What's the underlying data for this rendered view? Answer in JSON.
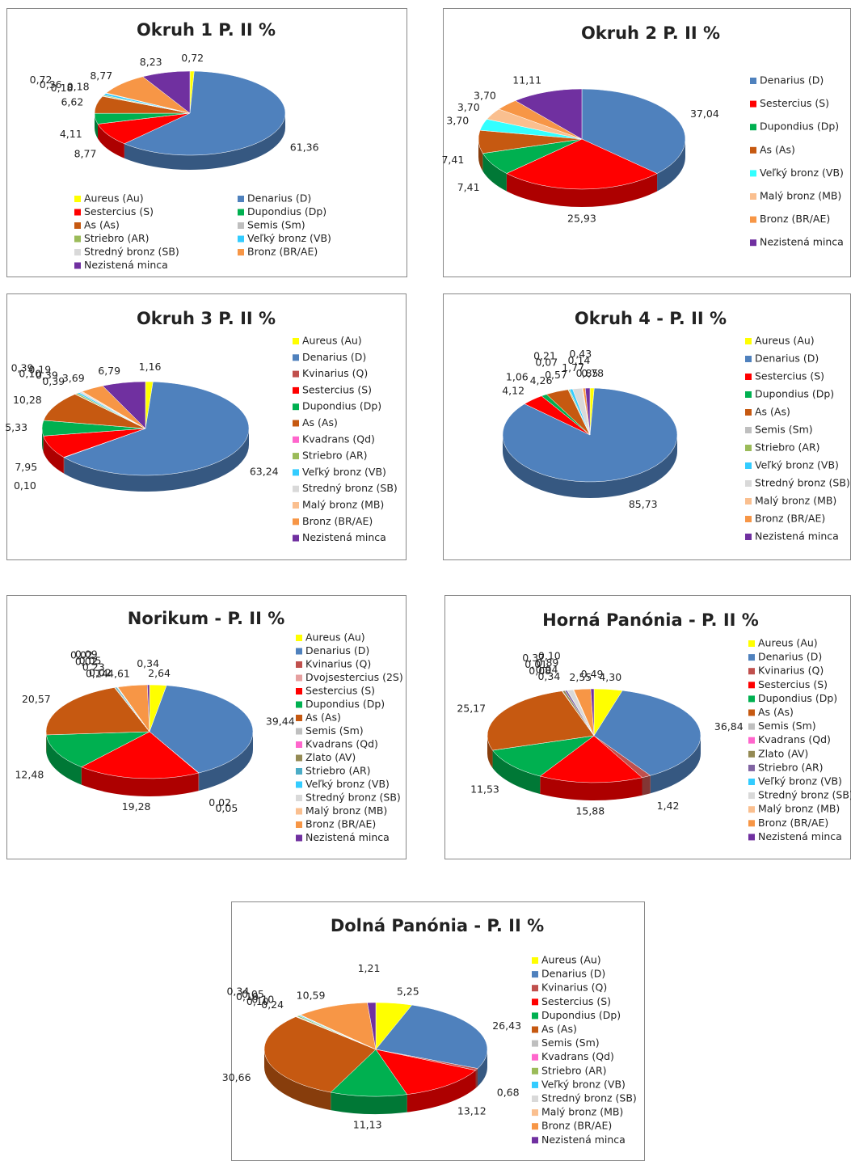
{
  "chart_data": [
    {
      "type": "pie",
      "title": "Okruh 1 P. II %",
      "legend": "bottom",
      "categories": [
        "Aureus (Au)",
        "Denarius (D)",
        "Sestercius (S)",
        "Dupondius (Dp)",
        "As (As)",
        "Semis (Sm)",
        "Striebro (AR)",
        "Veľký bronz (VB)",
        "Stredný bronz (SB)",
        "Bronz (BR/AE)",
        "Nezistená minca"
      ],
      "values": [
        0.72,
        61.36,
        8.77,
        4.11,
        6.62,
        0.18,
        0.36,
        0.72,
        0.18,
        8.77,
        8.23
      ],
      "value_labels": [
        "0,72",
        "61,36",
        "8,77",
        "4,11",
        "6,62",
        "0,18",
        "0,36",
        "0,72",
        "0,18",
        "8,77",
        "8,23"
      ],
      "colors": [
        "#ffff00",
        "#4f81bd",
        "#ff0000",
        "#00b050",
        "#c65911",
        "#bfbfbf",
        "#9bbb59",
        "#33ccff",
        "#d9d9d9",
        "#f79646",
        "#7030a0"
      ]
    },
    {
      "type": "pie",
      "title": "Okruh 2 P. II %",
      "legend": "right",
      "categories": [
        "Denarius (D)",
        "Sestercius (S)",
        "Dupondius (Dp)",
        "As (As)",
        "Veľký bronz (VB)",
        "Malý bronz (MB)",
        "Bronz (BR/AE)",
        "Nezistená minca"
      ],
      "values": [
        37.04,
        25.93,
        7.41,
        7.41,
        3.7,
        3.7,
        3.7,
        11.11
      ],
      "value_labels": [
        "37,04",
        "25,93",
        "7,41",
        "7,41",
        "3,70",
        "3,70",
        "3,70",
        "11,11"
      ],
      "colors": [
        "#4f81bd",
        "#ff0000",
        "#00b050",
        "#c65911",
        "#33ffff",
        "#fabf8f",
        "#f79646",
        "#7030a0"
      ]
    },
    {
      "type": "pie",
      "title": "Okruh 3 P. II %",
      "legend": "right",
      "categories": [
        "Aureus (Au)",
        "Denarius (D)",
        "Kvinarius (Q)",
        "Sestercius (S)",
        "Dupondius (Dp)",
        "As (As)",
        "Kvadrans (Qd)",
        "Striebro (AR)",
        "Veľký bronz (VB)",
        "Stredný bronz (SB)",
        "Malý bronz (MB)",
        "Bronz (BR/AE)",
        "Nezistená minca"
      ],
      "values": [
        1.16,
        63.24,
        0.1,
        7.95,
        5.33,
        10.28,
        0.1,
        0.39,
        0.39,
        0.39,
        0.19,
        3.69,
        6.79
      ],
      "value_labels": [
        "1,16",
        "63,24",
        "0,10",
        "7,95",
        "5,33",
        "10,28",
        "0,10",
        "0,39",
        "0,39",
        "0,39",
        "0,19",
        "3,69",
        "6,79"
      ],
      "colors": [
        "#ffff00",
        "#4f81bd",
        "#c0504d",
        "#ff0000",
        "#00b050",
        "#c65911",
        "#ff66cc",
        "#9bbb59",
        "#33ccff",
        "#d9d9d9",
        "#fabf8f",
        "#f79646",
        "#7030a0"
      ]
    },
    {
      "type": "pie",
      "title": "Okruh 4 - P. II %",
      "legend": "right",
      "categories": [
        "Aureus (Au)",
        "Denarius (D)",
        "Sestercius (S)",
        "Dupondius (Dp)",
        "As (As)",
        "Semis (Sm)",
        "Striebro (AR)",
        "Veľký bronz (VB)",
        "Stredný bronz (SB)",
        "Malý bronz (MB)",
        "Bronz (BR/AE)",
        "Nezistená minca"
      ],
      "values": [
        0.78,
        85.73,
        4.12,
        1.06,
        4.26,
        0.07,
        0.21,
        0.57,
        1.77,
        0.14,
        0.43,
        0.85
      ],
      "value_labels": [
        "0,78",
        "85,73",
        "4,12",
        "1,06",
        "4,26",
        "0,07",
        "0,21",
        "0,57",
        "1,77",
        "0,14",
        "0,43",
        "0,85"
      ],
      "colors": [
        "#ffff00",
        "#4f81bd",
        "#ff0000",
        "#00b050",
        "#c65911",
        "#bfbfbf",
        "#9bbb59",
        "#33ccff",
        "#d9d9d9",
        "#fabf8f",
        "#f79646",
        "#7030a0"
      ]
    },
    {
      "type": "pie",
      "title": "Norikum - P. II %",
      "legend": "right",
      "categories": [
        "Aureus (Au)",
        "Denarius (D)",
        "Kvinarius (Q)",
        "Dvojsestercius (2S)",
        "Sestercius (S)",
        "Dupondius (Dp)",
        "As (As)",
        "Semis (Sm)",
        "Kvadrans (Qd)",
        "Zlato (AV)",
        "Striebro (AR)",
        "Veľký bronz (VB)",
        "Stredný bronz (SB)",
        "Malý bronz (MB)",
        "Bronz (BR/AE)",
        "Nezistená minca"
      ],
      "values": [
        2.64,
        39.44,
        0.02,
        0.05,
        19.28,
        12.48,
        20.57,
        0.02,
        0.02,
        0.14,
        0.23,
        0.05,
        0.09,
        0.02,
        4.61,
        0.34
      ],
      "value_labels": [
        "2,64",
        "39,44",
        "0,02",
        "0,05",
        "19,28",
        "12,48",
        "20,57",
        "0,02",
        "0,02",
        "0,14",
        "0,23",
        "0,05",
        "0,09",
        "0,02",
        "4,61",
        "0,34"
      ],
      "colors": [
        "#ffff00",
        "#4f81bd",
        "#c0504d",
        "#e6a0a0",
        "#ff0000",
        "#00b050",
        "#c65911",
        "#bfbfbf",
        "#ff66cc",
        "#948a54",
        "#4bacc6",
        "#33ccff",
        "#d9d9d9",
        "#fabf8f",
        "#f79646",
        "#7030a0"
      ]
    },
    {
      "type": "pie",
      "title": "Horná Panónia - P. II %",
      "legend": "right",
      "categories": [
        "Aureus (Au)",
        "Denarius (D)",
        "Kvinarius (Q)",
        "Sestercius (S)",
        "Dupondius (Dp)",
        "As (As)",
        "Semis (Sm)",
        "Kvadrans (Qd)",
        "Zlato (AV)",
        "Striebro (AR)",
        "Veľký bronz (VB)",
        "Stredný bronz (SB)",
        "Malý bronz (MB)",
        "Bronz (BR/AE)",
        "Nezistená minca"
      ],
      "values": [
        4.3,
        36.84,
        1.42,
        15.88,
        11.53,
        25.17,
        0.08,
        0.01,
        0.37,
        0.34,
        0.04,
        0.89,
        0.1,
        2.55,
        0.49
      ],
      "value_labels": [
        "4,30",
        "36,84",
        "1,42",
        "15,88",
        "11,53",
        "25,17",
        "0,08",
        "0,01",
        "0,37",
        "0,34",
        "0,04",
        "0,89",
        "0,10",
        "2,55",
        "0,49"
      ],
      "colors": [
        "#ffff00",
        "#4f81bd",
        "#c0504d",
        "#ff0000",
        "#00b050",
        "#c65911",
        "#bfbfbf",
        "#ff66cc",
        "#948a54",
        "#8064a2",
        "#33ccff",
        "#d9d9d9",
        "#fabf8f",
        "#f79646",
        "#7030a0"
      ]
    },
    {
      "type": "pie",
      "title": "Dolná Panónia - P. II %",
      "legend": "right",
      "categories": [
        "Aureus (Au)",
        "Denarius (D)",
        "Kvinarius (Q)",
        "Sestercius (S)",
        "Dupondius (Dp)",
        "As (As)",
        "Semis (Sm)",
        "Kvadrans (Qd)",
        "Striebro (AR)",
        "Veľký bronz (VB)",
        "Stredný bronz (SB)",
        "Malý bronz (MB)",
        "Bronz (BR/AE)",
        "Nezistená minca"
      ],
      "values": [
        5.25,
        26.43,
        0.68,
        13.12,
        11.13,
        30.66,
        0.1,
        0.1,
        0.34,
        0.24,
        0.1,
        0.05,
        10.59,
        1.21
      ],
      "value_labels": [
        "5,25",
        "26,43",
        "0,68",
        "13,12",
        "11,13",
        "30,66",
        "0,10",
        "0,10",
        "0,34",
        "0,24",
        "0,10",
        "0,05",
        "10,59",
        "1,21"
      ],
      "colors": [
        "#ffff00",
        "#4f81bd",
        "#c0504d",
        "#ff0000",
        "#00b050",
        "#c65911",
        "#bfbfbf",
        "#ff66cc",
        "#9bbb59",
        "#33ccff",
        "#d9d9d9",
        "#fabf8f",
        "#f79646",
        "#7030a0"
      ]
    }
  ]
}
